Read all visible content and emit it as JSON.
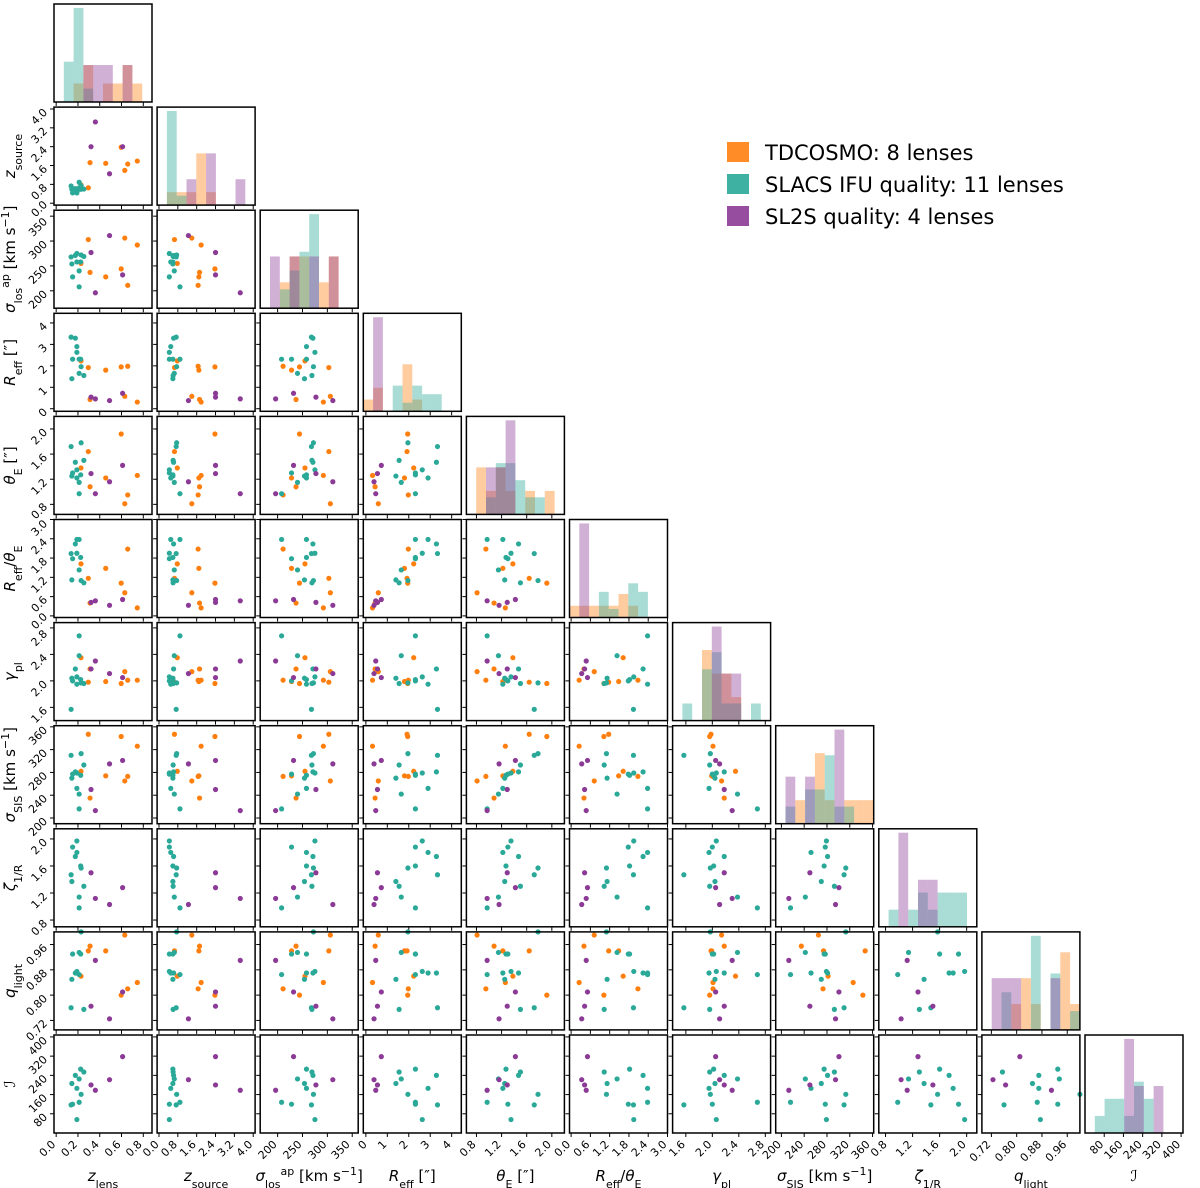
{
  "chart_data": {
    "type": "corner",
    "variables": [
      {
        "key": "zl",
        "label": [
          {
            "t": "z",
            "s": "it"
          },
          {
            "t": "lens",
            "s": "sub"
          }
        ],
        "range": [
          -0.02,
          0.88
        ],
        "ticks": [
          0.0,
          0.2,
          0.4,
          0.6,
          0.8
        ],
        "tick_labels": [
          "0.0",
          "0.2",
          "0.4",
          "0.6",
          "0.8"
        ]
      },
      {
        "key": "zs",
        "label": [
          {
            "t": "z",
            "s": "it"
          },
          {
            "t": "source",
            "s": "sub"
          }
        ],
        "range": [
          -0.08,
          4.08
        ],
        "ticks": [
          0.0,
          0.8,
          1.6,
          2.4,
          3.2,
          4.0
        ],
        "tick_labels": [
          "0.0",
          "0.8",
          "1.6",
          "2.4",
          "3.2",
          "4.0"
        ]
      },
      {
        "key": "slos",
        "label": [
          {
            "t": "σ",
            "s": "it"
          },
          {
            "t": "los",
            "s": "sub"
          },
          {
            "t": "ap",
            "s": "sup"
          },
          {
            "t": " [km s",
            "s": ""
          },
          {
            "t": "−1",
            "s": "sup"
          },
          {
            "t": "]",
            "s": ""
          }
        ],
        "range": [
          165,
          362
        ],
        "ticks": [
          200,
          250,
          300,
          350
        ],
        "tick_labels": [
          "200",
          "250",
          "300",
          "350"
        ]
      },
      {
        "key": "reff",
        "label": [
          {
            "t": "R",
            "s": "it"
          },
          {
            "t": "eff",
            "s": "sub"
          },
          {
            "t": " [″]",
            "s": ""
          }
        ],
        "range": [
          -0.12,
          4.45
        ],
        "ticks": [
          0,
          1,
          2,
          3,
          4
        ],
        "tick_labels": [
          "0",
          "1",
          "2",
          "3",
          "4"
        ]
      },
      {
        "key": "thE",
        "label": [
          {
            "t": "θ",
            "s": "it"
          },
          {
            "t": "E",
            "s": "sub"
          },
          {
            "t": " [″]",
            "s": ""
          }
        ],
        "range": [
          0.64,
          2.2
        ],
        "ticks": [
          0.8,
          1.2,
          1.6,
          2.0
        ],
        "tick_labels": [
          "0.8",
          "1.2",
          "1.6",
          "2.0"
        ]
      },
      {
        "key": "ratio",
        "label": [
          {
            "t": "R",
            "s": "it"
          },
          {
            "t": "eff",
            "s": "sub"
          },
          {
            "t": "/",
            "s": ""
          },
          {
            "t": "θ",
            "s": "it"
          },
          {
            "t": "E",
            "s": "sub"
          }
        ],
        "range": [
          -0.05,
          3.0
        ],
        "ticks": [
          0.0,
          0.6,
          1.2,
          1.8,
          2.4,
          3.0
        ],
        "tick_labels": [
          "0.0",
          "0.6",
          "1.2",
          "1.8",
          "2.4",
          "3.0"
        ]
      },
      {
        "key": "gam",
        "label": [
          {
            "t": "γ",
            "s": "it"
          },
          {
            "t": "pl",
            "s": "sub"
          }
        ],
        "range": [
          1.4,
          2.88
        ],
        "ticks": [
          1.6,
          2.0,
          2.4,
          2.8
        ],
        "tick_labels": [
          "1.6",
          "2.0",
          "2.4",
          "2.8"
        ]
      },
      {
        "key": "ssis",
        "label": [
          {
            "t": "σ",
            "s": "it"
          },
          {
            "t": "SIS",
            "s": "sub"
          },
          {
            "t": " [km s",
            "s": ""
          },
          {
            "t": "−1",
            "s": "sup"
          },
          {
            "t": "]",
            "s": ""
          }
        ],
        "range": [
          190,
          362
        ],
        "ticks": [
          200,
          240,
          280,
          320,
          360
        ],
        "tick_labels": [
          "200",
          "240",
          "280",
          "320",
          "360"
        ]
      },
      {
        "key": "zeta",
        "label": [
          {
            "t": "ζ",
            "s": "it"
          },
          {
            "t": "1/R",
            "s": "sub"
          }
        ],
        "range": [
          0.7,
          2.15
        ],
        "ticks": [
          0.8,
          1.2,
          1.6,
          2.0
        ],
        "tick_labels": [
          "0.8",
          "1.2",
          "1.6",
          "2.0"
        ]
      },
      {
        "key": "q",
        "label": [
          {
            "t": "q",
            "s": "it"
          },
          {
            "t": "light",
            "s": "sub"
          }
        ],
        "range": [
          0.69,
          1.0
        ],
        "ticks": [
          0.72,
          0.8,
          0.88,
          0.96
        ],
        "tick_labels": [
          "0.72",
          "0.80",
          "0.88",
          "0.96"
        ]
      },
      {
        "key": "I",
        "label": [
          {
            "t": "ℐ",
            "s": "it"
          }
        ],
        "range": [
          0,
          408
        ],
        "ticks": [
          80,
          160,
          240,
          320,
          400
        ],
        "tick_labels": [
          "80",
          "160",
          "240",
          "320",
          "400"
        ]
      }
    ],
    "series": [
      {
        "name": "TDCOSMO: 8 lenses",
        "color": "#ff7f0e",
        "points": [
          [
            0.228,
            0.777,
            255,
            2.23,
            1.38,
            1.62,
            2.35,
            282,
            null,
            0.86,
            null
          ],
          [
            0.295,
            0.657,
            303,
            1.92,
            1.64,
            1.17,
            1.98,
            347,
            null,
            0.94,
            null
          ],
          [
            0.311,
            1.722,
            237,
            0.43,
            1.08,
            0.4,
            2.18,
            235,
            null,
            0.955,
            null
          ],
          [
            0.455,
            1.693,
            228,
            1.8,
            1.22,
            1.48,
            1.99,
            274,
            null,
            0.94,
            null
          ],
          [
            0.597,
            2.375,
            244,
            1.95,
            1.92,
            1.02,
            1.96,
            343,
            null,
            0.8,
            null
          ],
          [
            0.63,
            1.394,
            306,
            0.58,
            0.81,
            0.72,
            2.14,
            265,
            null,
            0.99,
            null
          ],
          [
            0.657,
            1.662,
            211,
            1.98,
            0.95,
            2.08,
            2.01,
            273,
            null,
            0.82,
            null
          ],
          [
            0.745,
            1.789,
            292,
            0.31,
            1.26,
            0.25,
            2.01,
            326,
            null,
            0.84,
            null
          ]
        ]
      },
      {
        "name": "SLACS IFU quality: 11 lenses",
        "color": "#2aa898",
        "points": [
          [
            0.225,
            0.59,
            258,
            2.31,
            1.27,
            1.82,
            2.02,
            275,
            1.6,
            0.93,
            266
          ],
          [
            0.254,
            0.6,
            269,
            1.55,
            1.5,
            1.03,
            1.96,
            293,
            1.3,
            0.755,
            254
          ],
          [
            0.176,
            0.62,
            271,
            3.29,
            1.47,
            2.24,
            2.18,
            281,
            1.74,
            0.87,
            240
          ],
          [
            0.211,
            0.65,
            240,
            1.65,
            1.15,
            1.43,
            2.38,
            242,
            1.14,
            0.935,
            225
          ],
          [
            0.144,
            0.59,
            254,
            1.4,
            1.25,
            1.12,
            2.04,
            270,
            1.37,
            0.85,
            206
          ],
          [
            0.19,
            0.5,
            258,
            2.9,
            1.22,
            2.38,
            1.95,
            252,
            1.8,
            0.87,
            186
          ],
          [
            0.229,
            0.75,
            272,
            1.96,
            1.78,
            1.1,
            1.97,
            313,
            1.57,
            1.0,
            161
          ],
          [
            0.211,
            0.89,
            208,
            2.31,
            0.97,
            2.38,
            2.68,
            216,
            0.98,
            0.865,
            128
          ],
          [
            0.151,
            0.44,
            228,
            2.31,
            1.3,
            1.78,
            2.0,
            277,
            1.88,
            0.93,
            120
          ],
          [
            0.137,
            0.73,
            268,
            3.34,
            1.72,
            1.94,
            1.57,
            310,
            1.47,
            0.76,
            117
          ],
          [
            0.19,
            0.44,
            275,
            2.63,
            1.35,
            1.95,
            2.06,
            279,
            1.97,
            0.875,
            56
          ]
        ]
      },
      {
        "name": "SL2S quality: 4 lenses",
        "color": "#8b3a96",
        "points": [
          [
            0.32,
            2.4,
            277,
            0.54,
            1.29,
            0.42,
            2.18,
            250,
            1.5,
            0.765,
            200
          ],
          [
            0.36,
            3.45,
            196,
            0.46,
            0.97,
            0.47,
            2.3,
            213,
            1.12,
            0.91,
            178
          ],
          [
            0.49,
            1.25,
            311,
            0.38,
            1.16,
            0.33,
            2.11,
            295,
            1.03,
            0.725,
            222
          ],
          [
            0.61,
            2.4,
            232,
            0.72,
            1.42,
            0.51,
            2.05,
            301,
            1.28,
            0.81,
            318
          ]
        ]
      }
    ],
    "histogram_bins": 10,
    "legend_placement": "top-right",
    "grid": false
  }
}
